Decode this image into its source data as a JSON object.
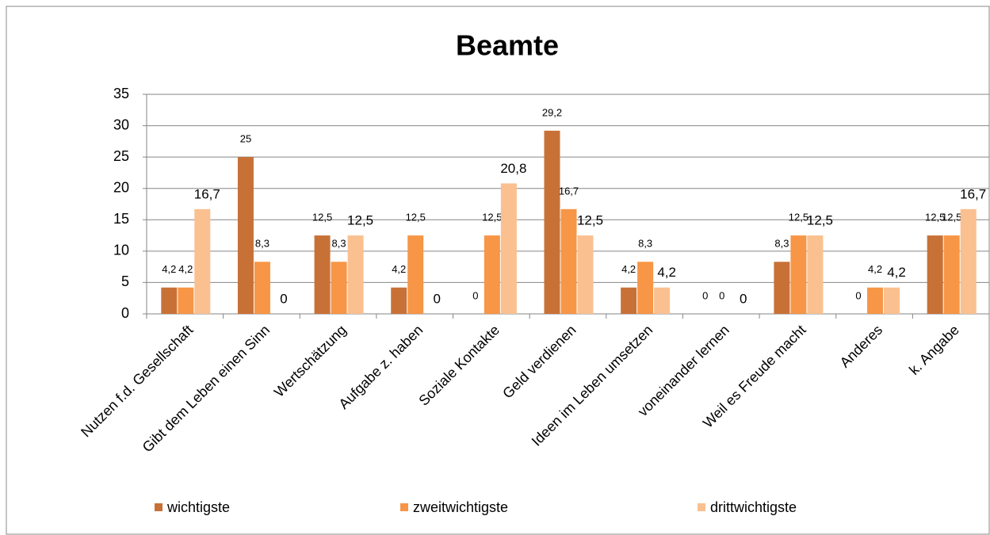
{
  "chart_data": {
    "type": "bar",
    "title": "Beamte",
    "categories": [
      "Nutzen f.d. Gesellschaft",
      "Gibt dem Leben einen Sinn",
      "Wertschätzung",
      "Aufgabe z. haben",
      "Soziale Kontakte",
      "Geld verdienen",
      "Ideen im Leben umsetzen",
      "voneinander lernen",
      "Weil es Freude macht",
      "Anderes",
      "k. Angabe"
    ],
    "series": [
      {
        "name": "wichtigste",
        "color": "#c87137",
        "values": [
          4.2,
          25,
          12.5,
          4.2,
          0,
          29.2,
          4.2,
          0,
          8.3,
          0,
          12.5
        ],
        "value_labels": [
          "4,2",
          "25",
          "12,5",
          "4,2",
          "0",
          "29,2",
          "4,2",
          "0",
          "8,3",
          "0",
          "12,5"
        ]
      },
      {
        "name": "zweitwichtigste",
        "color": "#f79646",
        "values": [
          4.2,
          8.3,
          8.3,
          12.5,
          12.5,
          16.7,
          8.3,
          0,
          12.5,
          4.2,
          12.5
        ],
        "value_labels": [
          "4,2",
          "8,3",
          "8,3",
          "12,5",
          "12,5",
          "16,7",
          "8,3",
          "0",
          "12,5",
          "4,2",
          "12,5"
        ]
      },
      {
        "name": "drittwichtigste",
        "color": "#fac090",
        "values": [
          16.7,
          0,
          12.5,
          0,
          20.8,
          12.5,
          4.2,
          0,
          12.5,
          4.2,
          16.7
        ],
        "value_labels": [
          "16,7",
          "0",
          "12,5",
          "0",
          "20,8",
          "12,5",
          "4,2",
          "0",
          "12,5",
          "4,2",
          "16,7"
        ]
      }
    ],
    "ylim": [
      0,
      35
    ],
    "yticks": [
      0,
      5,
      10,
      15,
      20,
      25,
      30,
      35
    ],
    "grid": true,
    "legend": "bottom"
  }
}
